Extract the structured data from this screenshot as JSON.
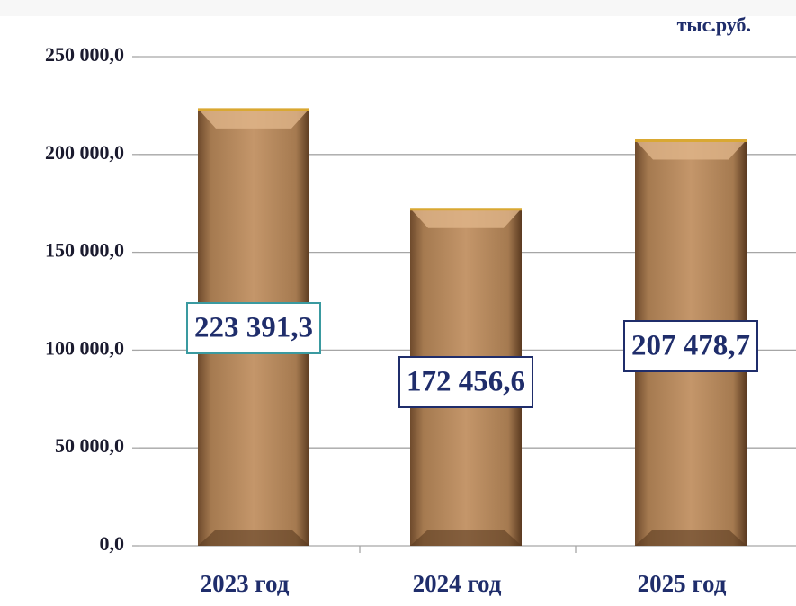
{
  "chart_data": {
    "type": "bar",
    "unit_label": "тыс.руб.",
    "categories": [
      "2023 год",
      "2024 год",
      "2025 год"
    ],
    "values": [
      223391.3,
      172456.6,
      207478.7
    ],
    "value_labels": [
      "223 391,3",
      "172 456,6",
      "207 478,7"
    ],
    "color": "#b98a5c",
    "ylim": [
      0,
      250000
    ],
    "yticks": [
      {
        "value": 0,
        "label": "0,0"
      },
      {
        "value": 50000,
        "label": "50 000,0"
      },
      {
        "value": 100000,
        "label": "100 000,0"
      },
      {
        "value": 150000,
        "label": "150 000,0"
      },
      {
        "value": 200000,
        "label": "200 000,0"
      },
      {
        "value": 250000,
        "label": "250 000,0"
      }
    ],
    "grid": true
  }
}
